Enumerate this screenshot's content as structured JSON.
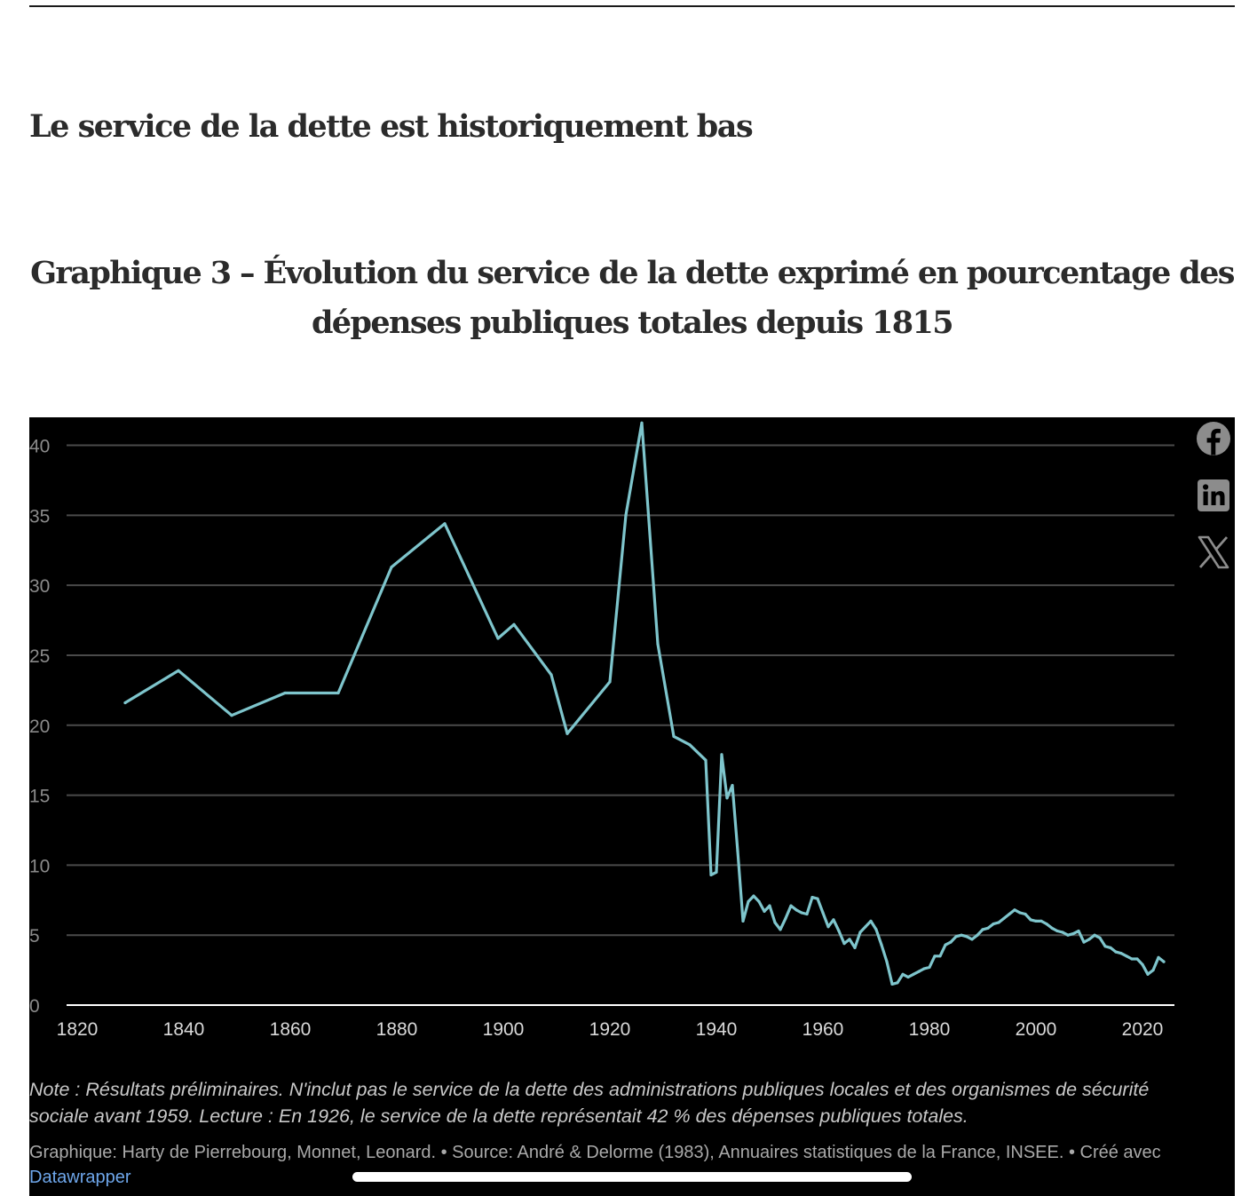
{
  "section": {
    "heading": "Le service de la dette est historiquement bas"
  },
  "chart": {
    "title": "Graphique 3 – Évolution du service de la dette exprimé en pourcentage des dépenses publiques totales depuis 1815"
  },
  "share": {
    "facebook_icon": "facebook-icon",
    "linkedin_icon": "linkedin-icon",
    "x_icon": "x-icon"
  },
  "footer": {
    "note": "Note : Résultats préliminaires. N'inclut pas le service de la dette des administrations publiques locales et des organismes de sécurité sociale avant 1959. Lecture : En 1926, le service de la dette représentait 42 % des dépenses publiques totales.",
    "credits_text": "Graphique: Harty de Pierrebourg, Monnet, Leonard. • Source: André & Delorme (1983), Annuaires statistiques de la France, INSEE. • Créé avec ",
    "credits_link": "Datawrapper"
  },
  "chart_data": {
    "type": "line",
    "title": "Graphique 3 – Évolution du service de la dette exprimé en pourcentage des dépenses publiques totales depuis 1815",
    "xlabel": "",
    "ylabel": "",
    "xlim": [
      1811,
      2026
    ],
    "ylim": [
      0,
      42
    ],
    "xticks": [
      1820,
      1840,
      1860,
      1880,
      1900,
      1920,
      1940,
      1960,
      1980,
      2000,
      2020
    ],
    "yticks": [
      0,
      5,
      10,
      15,
      20,
      25,
      30,
      35,
      40
    ],
    "grid": true,
    "legend": "none",
    "colors": {
      "line": "#7ec5cc",
      "background": "#000000",
      "grid": "#4a4a4a",
      "axis": "#ffffff",
      "tick_text": "#d9d9d9",
      "y_tick_text": "#8a8a8a"
    },
    "series": [
      {
        "x": [
          1829,
          1839,
          1849,
          1859,
          1869,
          1879,
          1889,
          1899,
          1902,
          1909,
          1912,
          1920,
          1923,
          1926,
          1929,
          1932,
          1935,
          1938,
          1939,
          1940,
          1941,
          1942,
          1943,
          1944,
          1945,
          1946,
          1947,
          1948,
          1949,
          1950,
          1951,
          1952,
          1953,
          1954,
          1955,
          1956,
          1957,
          1958,
          1959,
          1960,
          1961,
          1962,
          1963,
          1964,
          1965,
          1966,
          1967,
          1968,
          1969,
          1970,
          1971,
          1972,
          1973,
          1974,
          1975,
          1976,
          1977,
          1978,
          1979,
          1980,
          1981,
          1982,
          1983,
          1984,
          1985,
          1986,
          1987,
          1988,
          1989,
          1990,
          1991,
          1992,
          1993,
          1994,
          1995,
          1996,
          1997,
          1998,
          1999,
          2000,
          2001,
          2002,
          2003,
          2004,
          2005,
          2006,
          2007,
          2008,
          2009,
          2010,
          2011,
          2012,
          2013,
          2014,
          2015,
          2016,
          2017,
          2018,
          2019,
          2020,
          2021,
          2022,
          2023,
          2024
        ],
        "y": [
          21.6,
          23.9,
          20.7,
          22.3,
          22.3,
          31.3,
          34.4,
          26.2,
          27.2,
          23.6,
          19.4,
          23.1,
          35.0,
          41.6,
          25.8,
          19.2,
          18.6,
          17.5,
          9.3,
          9.5,
          17.9,
          14.8,
          15.7,
          11.0,
          6.0,
          7.4,
          7.8,
          7.4,
          6.7,
          7.1,
          5.9,
          5.4,
          6.2,
          7.1,
          6.8,
          6.6,
          6.5,
          7.7,
          7.6,
          6.6,
          5.6,
          6.1,
          5.3,
          4.4,
          4.7,
          4.1,
          5.2,
          5.6,
          6.0,
          5.4,
          4.3,
          3.1,
          1.5,
          1.6,
          2.2,
          2.0,
          2.2,
          2.4,
          2.6,
          2.7,
          3.5,
          3.5,
          4.3,
          4.5,
          4.9,
          5.0,
          4.9,
          4.7,
          5.0,
          5.4,
          5.5,
          5.8,
          5.9,
          6.2,
          6.5,
          6.8,
          6.6,
          6.5,
          6.1,
          6.0,
          6.0,
          5.8,
          5.5,
          5.3,
          5.2,
          5.0,
          5.1,
          5.3,
          4.5,
          4.7,
          5.0,
          4.8,
          4.2,
          4.1,
          3.8,
          3.7,
          3.5,
          3.3,
          3.3,
          2.9,
          2.2,
          2.5,
          3.4,
          3.1
        ]
      }
    ]
  }
}
